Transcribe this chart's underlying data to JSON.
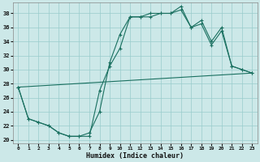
{
  "xlabel": "Humidex (Indice chaleur)",
  "bg_color": "#cce8e8",
  "grid_color": "#99cccc",
  "line_color": "#1a7060",
  "xlim": [
    -0.5,
    23.5
  ],
  "ylim": [
    19.5,
    39.5
  ],
  "yticks": [
    20,
    22,
    24,
    26,
    28,
    30,
    32,
    34,
    36,
    38
  ],
  "xticks": [
    0,
    1,
    2,
    3,
    4,
    5,
    6,
    7,
    8,
    9,
    10,
    11,
    12,
    13,
    14,
    15,
    16,
    17,
    18,
    19,
    20,
    21,
    22,
    23
  ],
  "line1_x": [
    0,
    1,
    2,
    3,
    4,
    5,
    6,
    7,
    8,
    9,
    10,
    11,
    12,
    13,
    14,
    15,
    16,
    17,
    18,
    19,
    20,
    21,
    22,
    23
  ],
  "line1_y": [
    27.5,
    23.0,
    22.5,
    22.0,
    21.0,
    20.5,
    20.5,
    20.5,
    27.0,
    30.5,
    33.0,
    37.5,
    37.5,
    38.0,
    38.0,
    38.0,
    38.5,
    36.0,
    36.5,
    33.5,
    35.5,
    30.5,
    30.0,
    29.5
  ],
  "line2_x": [
    0,
    1,
    2,
    3,
    4,
    5,
    6,
    7,
    8,
    9,
    10,
    11,
    12,
    13,
    14,
    15,
    16,
    17,
    18,
    19,
    20,
    21,
    22,
    23
  ],
  "line2_y": [
    27.5,
    23.0,
    22.5,
    22.0,
    21.0,
    20.5,
    20.5,
    21.0,
    24.0,
    31.0,
    35.0,
    37.5,
    37.5,
    37.5,
    38.0,
    38.0,
    39.0,
    36.0,
    37.0,
    34.0,
    36.0,
    30.5,
    30.0,
    29.5
  ],
  "line3_x": [
    0,
    23
  ],
  "line3_y": [
    27.5,
    29.5
  ]
}
